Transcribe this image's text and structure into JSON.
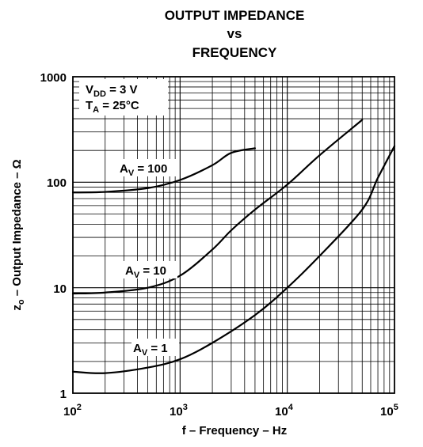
{
  "chart_data": {
    "type": "line",
    "title": [
      "OUTPUT IMPEDANCE",
      "vs",
      "FREQUENCY"
    ],
    "xlabel": "f – Frequency – Hz",
    "ylabel": {
      "base": "z",
      "sub": "o",
      "rest": " – Output Impedance – Ω"
    },
    "x_scale": "log",
    "y_scale": "log",
    "xlim": [
      100,
      100000
    ],
    "ylim": [
      1,
      1000
    ],
    "grid": true,
    "x_ticks": [
      {
        "base": "10",
        "exp": "2"
      },
      {
        "base": "10",
        "exp": "3"
      },
      {
        "base": "10",
        "exp": "4"
      },
      {
        "base": "10",
        "exp": "5"
      }
    ],
    "y_ticks": [
      "1",
      "10",
      "100",
      "1000"
    ],
    "conditions": [
      {
        "base": "V",
        "sub": "DD",
        "rest": " = 3 V"
      },
      {
        "base": "T",
        "sub": "A",
        "rest": " = 25°C"
      }
    ],
    "series": [
      {
        "name": {
          "base": "A",
          "sub": "V",
          "rest": " = 100"
        },
        "x": [
          100,
          200,
          500,
          1000,
          2000,
          3000,
          5000
        ],
        "y": [
          80,
          81,
          88,
          105,
          145,
          190,
          210
        ]
      },
      {
        "name": {
          "base": "A",
          "sub": "V",
          "rest": " = 10"
        },
        "x": [
          100,
          200,
          500,
          1000,
          2000,
          3000,
          5000,
          10000,
          20000,
          50000
        ],
        "y": [
          8.8,
          9.0,
          10.0,
          13.0,
          23.0,
          35.0,
          55.0,
          95.0,
          180.0,
          390.0
        ]
      },
      {
        "name": {
          "base": "A",
          "sub": "V",
          "rest": " = 1"
        },
        "x": [
          100,
          200,
          500,
          1000,
          2000,
          5000,
          10000,
          20000,
          50000,
          70000,
          100000
        ],
        "y": [
          1.6,
          1.55,
          1.75,
          2.1,
          3.0,
          5.5,
          10.0,
          20.0,
          55.0,
          110.0,
          220.0
        ]
      }
    ]
  }
}
